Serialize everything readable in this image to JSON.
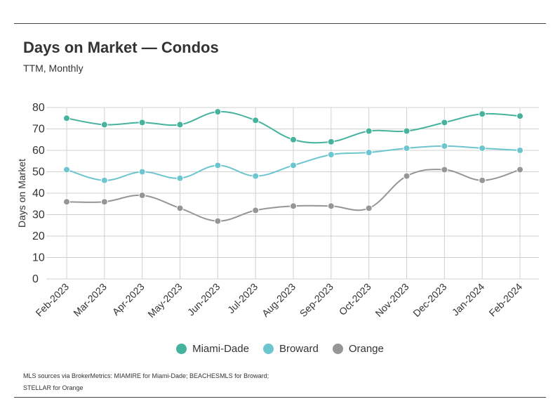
{
  "header": {
    "title": "Days on Market — Condos",
    "subtitle": "TTM, Monthly"
  },
  "footnote": {
    "line1": "MLS sources via BrokerMetrics: MIAMIRE for Miami-Dade; BEACHESMLS for Broward;",
    "line2": "STELLAR for Orange"
  },
  "chart_data": {
    "type": "line",
    "title": "Days on Market — Condos",
    "subtitle": "TTM, Monthly",
    "xlabel": "",
    "ylabel": "Days on Market",
    "ylim": [
      0,
      80
    ],
    "yticks": [
      0,
      10,
      20,
      30,
      40,
      50,
      60,
      70,
      80
    ],
    "grid": true,
    "legend_position": "bottom",
    "categories": [
      "Feb-2023",
      "Mar-2023",
      "Apr-2023",
      "May-2023",
      "Jun-2023",
      "Jul-2023",
      "Aug-2023",
      "Sep-2023",
      "Oct-2023",
      "Nov-2023",
      "Dec-2023",
      "Jan-2024",
      "Feb-2024"
    ],
    "series": [
      {
        "name": "Miami-Dade",
        "color": "#45b39d",
        "values": [
          75,
          72,
          73,
          72,
          78,
          74,
          65,
          64,
          69,
          69,
          73,
          77,
          76
        ]
      },
      {
        "name": "Broward",
        "color": "#6cc5cf",
        "values": [
          51,
          46,
          50,
          47,
          53,
          48,
          53,
          58,
          59,
          61,
          62,
          61,
          60
        ]
      },
      {
        "name": "Orange",
        "color": "#969696",
        "values": [
          36,
          36,
          39,
          33,
          27,
          32,
          34,
          34,
          33,
          48,
          51,
          46,
          51
        ]
      }
    ]
  }
}
